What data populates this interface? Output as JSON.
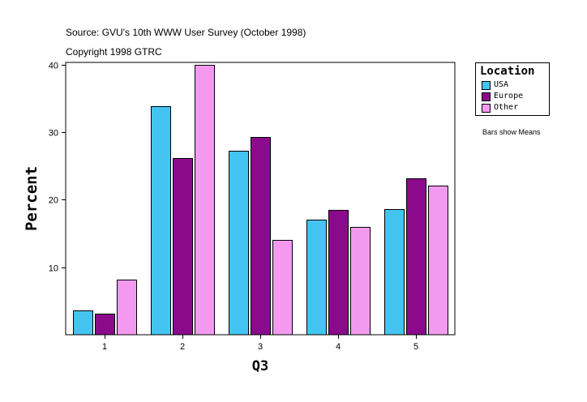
{
  "header": {
    "source": "Source: GVU's 10th WWW User Survey (October 1998)",
    "copyright": "Copyright 1998 GTRC"
  },
  "note": "Bars show Means",
  "legend": {
    "title": "Location",
    "items": [
      {
        "label": "USA",
        "color": "#44c4f0"
      },
      {
        "label": "Europe",
        "color": "#8b0a8b"
      },
      {
        "label": "Other",
        "color": "#f39af0"
      }
    ]
  },
  "chart_data": {
    "type": "bar",
    "title": "",
    "xlabel": "Q3",
    "ylabel": "Percent",
    "categories": [
      "1",
      "2",
      "3",
      "4",
      "5"
    ],
    "series": [
      {
        "name": "USA",
        "color": "#44c4f0",
        "values": [
          3.6,
          33.8,
          27.2,
          17.0,
          18.6
        ]
      },
      {
        "name": "Europe",
        "color": "#8b0a8b",
        "values": [
          3.1,
          26.1,
          29.3,
          18.5,
          23.2
        ]
      },
      {
        "name": "Other",
        "color": "#f39af0",
        "values": [
          8.1,
          40.0,
          14.0,
          16.0,
          22.1
        ]
      }
    ],
    "yticks": [
      10,
      20,
      30,
      40
    ],
    "ylim": [
      0,
      40.3
    ],
    "grid": false,
    "legend_position": "right"
  }
}
